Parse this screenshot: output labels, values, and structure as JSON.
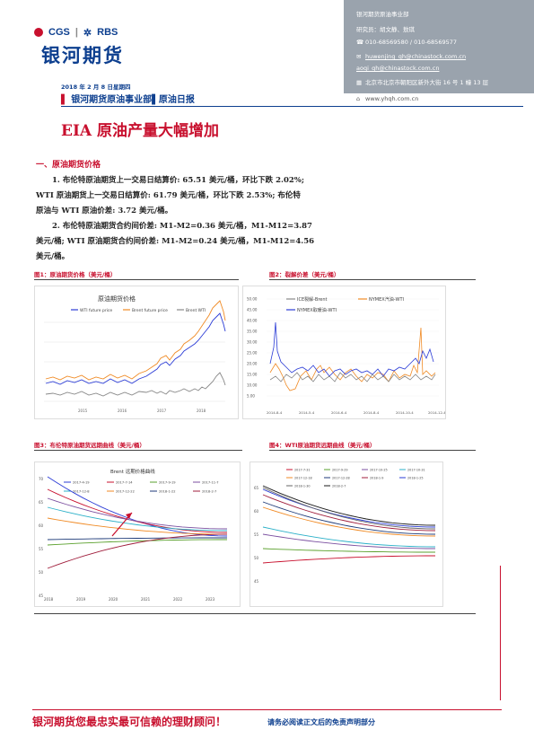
{
  "header": {
    "logo_brand_left": "CGS",
    "logo_brand_right": "RBS",
    "logo_name": "银河期货",
    "date": "2018 年 2 月 8 日星期四",
    "dept_prefix": "▌",
    "dept": "银河期货原油事业部▌原油日报",
    "title": "EIA 原油产量大幅增加"
  },
  "contact": {
    "org": "银河期货原油事业部",
    "researchers": "研究员：胡文静、敖琪",
    "phone": "010-68569580 / 010-68569577",
    "email1": "huwenjing_qh@chinastock.com.cn",
    "email2": "aoqi_qh@chinastock.com.cn",
    "address": "北京市北京市朝阳区新外大街 16 号 1 幢 13 层",
    "website": "www.yhqh.com.cn",
    "icons": [
      "phone-icon",
      "mail-icon",
      "mail-icon",
      "building-icon",
      "web-icon"
    ]
  },
  "section": {
    "title": "一、原油期货价格",
    "para1": "1. 布伦特原油期货上一交易日结算价: 65.51 美元/桶，环比下跌 2.02%; WTI 原油期货上一交易日结算价: 61.79 美元/桶，环比下跌 2.53%; 布伦特原油与 WTI 原油价差: 3.72 美元/桶。",
    "para1_l1": "1. 布伦特原油期货上一交易日结算价: 65.51 美元/桶，环比下跌 2.02%;",
    "para1_l2": "WTI 原油期货上一交易日结算价: 61.79 美元/桶，环比下跌 2.53%; 布伦特",
    "para1_l3": "原油与 WTI 原油价差: 3.72 美元/桶。",
    "para2_l1": "2. 布伦特原油期货合约间价差: M1-M2=0.36 美元/桶，M1-M12=3.87",
    "para2_l2": "美元/桶; WTI 原油期货合约间价差: M1-M2=0.24 美元/桶，M1-M12=4.56",
    "para2_l3": "美元/桶。"
  },
  "figures": {
    "fig1_label": "图1：原油期货价格（美元/桶）",
    "fig2_label": "图2：裂解价差（美元/桶）",
    "fig3_label": "图3：布伦特原油期货远期曲线（美元/桶）",
    "fig4_label": "图4：WTI原油期货远期曲线（美元/桶）"
  },
  "footer": {
    "main": "银河期货您最忠实最可信赖的理财顾问！",
    "sub": "请务必阅读正文后的免责声明部分"
  },
  "chart_data": [
    {
      "type": "line",
      "title": "原油期货价格",
      "series": [
        {
          "name": "WTI future price",
          "color": "#2b3cd6"
        },
        {
          "name": "Brent future price",
          "color": "#f08a24"
        },
        {
          "name": "Brent WTI",
          "color": "#888888"
        }
      ],
      "legend": "top"
    },
    {
      "type": "line",
      "y_ticks": [
        "50.00",
        "45.00",
        "40.00",
        "35.00",
        "30.00",
        "25.00",
        "20.00",
        "15.00",
        "10.00",
        "5.00"
      ],
      "ylim": [
        5,
        50
      ],
      "x_ticks": [
        "2014-8-4",
        "2014-5-4",
        "2014-6-4",
        "2014-8-4",
        "2014-10-4",
        "2014-12-4"
      ],
      "series": [
        {
          "name": "ICE裂解-Brent",
          "color": "#888888"
        },
        {
          "name": "NYMEX汽油-WTI",
          "color": "#f08a24"
        },
        {
          "name": "NYMEX取暖油-WTI",
          "color": "#2b3cd6"
        }
      ],
      "legend": "top"
    },
    {
      "type": "line",
      "title": "Brent 远期价格曲线",
      "y_ticks": [
        "70",
        "65",
        "60",
        "55",
        "50",
        "45"
      ],
      "ylim": [
        45,
        70
      ],
      "x_ticks": [
        "2018",
        "2019",
        "2020",
        "2021",
        "2022",
        "2023"
      ],
      "series": [
        {
          "name": "2017-4-19",
          "color": "#2b3cd6"
        },
        {
          "name": "2017-7-14",
          "color": "#c8102e"
        },
        {
          "name": "2017-9-19",
          "color": "#5aa02c"
        },
        {
          "name": "2017-11-7",
          "color": "#7b4fa0"
        },
        {
          "name": "2017-12-8",
          "color": "#2bb0c8"
        },
        {
          "name": "2017-12-22",
          "color": "#f08a24"
        },
        {
          "name": "2018-1-22",
          "color": "#1d3a78"
        },
        {
          "name": "2018-2-7",
          "color": "#a01e3c"
        }
      ],
      "legend": "top"
    },
    {
      "type": "line",
      "y_ticks": [
        "65",
        "60",
        "55",
        "50",
        "45"
      ],
      "ylim": [
        45,
        67
      ],
      "series": [
        {
          "name": "2017-7-31",
          "color": "#c8102e"
        },
        {
          "name": "2017-9-29",
          "color": "#5aa02c"
        },
        {
          "name": "2017-10-25",
          "color": "#7b4fa0"
        },
        {
          "name": "2017-10-31",
          "color": "#2bb0c8"
        },
        {
          "name": "2017-12-18",
          "color": "#f08a24"
        },
        {
          "name": "2017-12-28",
          "color": "#1d3a78"
        },
        {
          "name": "2018-1-9",
          "color": "#a01e3c"
        },
        {
          "name": "2018-1-25",
          "color": "#2b3cd6"
        },
        {
          "name": "2018-1-30",
          "color": "#666666"
        },
        {
          "name": "2018-2-7",
          "color": "#1a1a1a"
        }
      ],
      "legend": "top"
    }
  ]
}
